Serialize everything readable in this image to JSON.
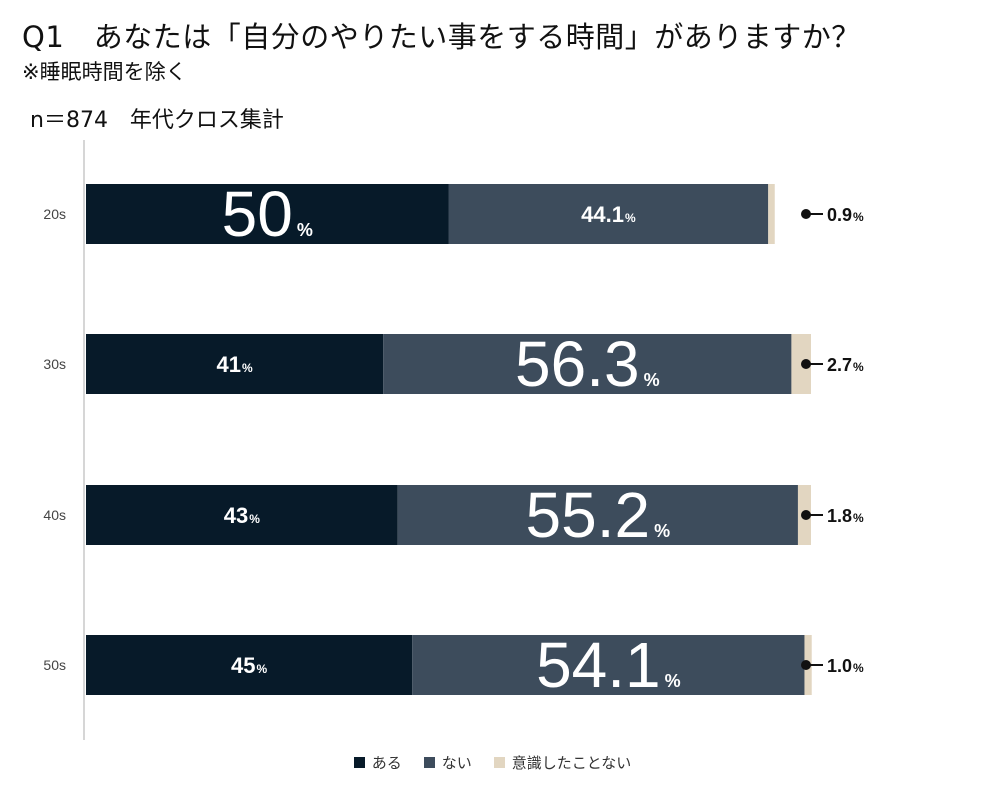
{
  "title": "Q1　あなたは「自分のやりたい事をする時間」がありますか？",
  "subtitle": "※睡眠時間を除く",
  "sample_label": "n＝874　年代クロス集計",
  "colors": {
    "aru": "#071a29",
    "nai": "#3d4c5c",
    "ishiki": "#e2d6c1",
    "axis": "#d6d6d6"
  },
  "legend": [
    {
      "label": "ある",
      "color": "#071a29"
    },
    {
      "label": "ない",
      "color": "#3d4c5c"
    },
    {
      "label": "意識したことない",
      "color": "#e2d6c1"
    }
  ],
  "chart_data": {
    "type": "bar",
    "orientation": "horizontal",
    "stacked": true,
    "unit": "%",
    "categories": [
      "20s",
      "30s",
      "40s",
      "50s"
    ],
    "series": [
      {
        "name": "ある",
        "values": [
          50,
          41,
          43,
          45
        ]
      },
      {
        "name": "ない",
        "values": [
          44.1,
          56.3,
          55.2,
          54.1
        ]
      },
      {
        "name": "意識したことない",
        "values": [
          0.9,
          2.7,
          1.8,
          1.0
        ]
      }
    ],
    "value_labels": {
      "ある": [
        "50",
        "41",
        "43",
        "45"
      ],
      "ない": [
        "44.1",
        "56.3",
        "55.2",
        "54.1"
      ],
      "意識したことない": [
        "0.9",
        "2.7",
        "1.8",
        "1.0"
      ]
    },
    "emphasized": [
      "ある",
      "ない",
      "ない",
      "ない"
    ],
    "legend_position": "bottom"
  }
}
